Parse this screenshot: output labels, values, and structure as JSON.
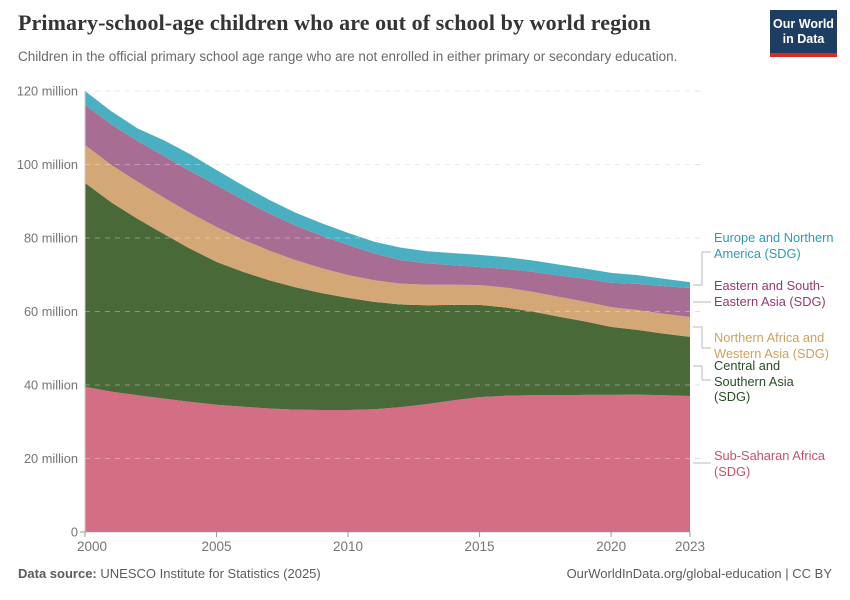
{
  "header": {
    "title": "Primary-school-age children who are out of school by world region",
    "subtitle": "Children in the official primary school age range who are not enrolled in either primary or secondary education.",
    "logo": {
      "line1": "Our World",
      "line2": "in Data"
    }
  },
  "legend": {
    "items": [
      {
        "label": "Europe and Northern America (SDG)",
        "color": "#2e9bb1"
      },
      {
        "label": "Eastern and South-Eastern Asia (SDG)",
        "color": "#98386e"
      },
      {
        "label": "Northern Africa and Western Asia (SDG)",
        "color": "#cda25f"
      },
      {
        "label": "Central and Southern Asia (SDG)",
        "color": "#274f26"
      },
      {
        "label": "Sub-Saharan Africa (SDG)",
        "color": "#c9506c"
      }
    ]
  },
  "footer": {
    "source_label": "Data source:",
    "source_value": "UNESCO Institute for Statistics (2025)",
    "license": "OurWorldInData.org/global-education | CC BY"
  },
  "chart_data": {
    "type": "area",
    "stacked": true,
    "title": "Primary-school-age children who are out of school by world region",
    "unit": "million children",
    "x": [
      2000,
      2001,
      2002,
      2003,
      2004,
      2005,
      2006,
      2007,
      2008,
      2009,
      2010,
      2011,
      2012,
      2013,
      2014,
      2015,
      2016,
      2017,
      2018,
      2019,
      2020,
      2021,
      2022,
      2023
    ],
    "series": [
      {
        "name": "Sub-Saharan Africa (SDG)",
        "color": "#d46e85",
        "values": [
          39.5,
          38.2,
          37.2,
          36.3,
          35.4,
          34.6,
          34.1,
          33.6,
          33.3,
          33.2,
          33.2,
          33.4,
          34.0,
          34.8,
          35.8,
          36.7,
          37.1,
          37.2,
          37.2,
          37.3,
          37.3,
          37.4,
          37.2,
          37.0
        ]
      },
      {
        "name": "Central and Southern Asia (SDG)",
        "color": "#4a6939",
        "values": [
          55.5,
          51.5,
          48.0,
          44.8,
          41.7,
          38.9,
          36.7,
          34.9,
          33.3,
          31.8,
          30.5,
          29.2,
          27.9,
          26.9,
          26.0,
          25.1,
          24.0,
          22.8,
          21.4,
          20.0,
          18.5,
          17.6,
          16.8,
          16.1
        ]
      },
      {
        "name": "Northern Africa and Western Asia (SDG)",
        "color": "#d3a876",
        "values": [
          10.3,
          10.2,
          10.1,
          9.9,
          9.7,
          9.5,
          8.8,
          8.1,
          7.4,
          6.8,
          6.2,
          5.9,
          5.7,
          5.6,
          5.5,
          5.4,
          5.4,
          5.4,
          5.4,
          5.4,
          5.4,
          5.4,
          5.4,
          5.4
        ]
      },
      {
        "name": "Eastern and South-Eastern Asia (SDG)",
        "color": "#a76d92",
        "values": [
          10.9,
          11.0,
          11.1,
          11.3,
          11.4,
          11.4,
          10.8,
          10.1,
          9.4,
          8.8,
          8.2,
          7.3,
          6.4,
          5.8,
          5.3,
          4.9,
          5.1,
          5.4,
          5.8,
          6.2,
          6.6,
          7.1,
          7.5,
          7.9
        ]
      },
      {
        "name": "Europe and Northern America (SDG)",
        "color": "#4ab0c1",
        "values": [
          3.8,
          3.6,
          3.4,
          4.3,
          4.6,
          4.1,
          3.9,
          3.7,
          3.5,
          3.4,
          3.3,
          3.2,
          3.4,
          3.3,
          3.3,
          3.3,
          3.2,
          3.1,
          3.0,
          2.8,
          2.7,
          2.4,
          2.0,
          1.6
        ]
      }
    ],
    "xticks": [
      2000,
      2005,
      2010,
      2015,
      2020,
      2023
    ],
    "yticks": [
      0,
      20,
      40,
      60,
      80,
      100,
      120
    ],
    "ytick_labels": [
      "0",
      "20 million",
      "40 million",
      "60 million",
      "80 million",
      "100 million",
      "120 million"
    ],
    "xlim": [
      2000,
      2023
    ],
    "ylim": [
      0,
      120
    ],
    "grid": "horizontal-dashed",
    "legend_position": "right"
  }
}
